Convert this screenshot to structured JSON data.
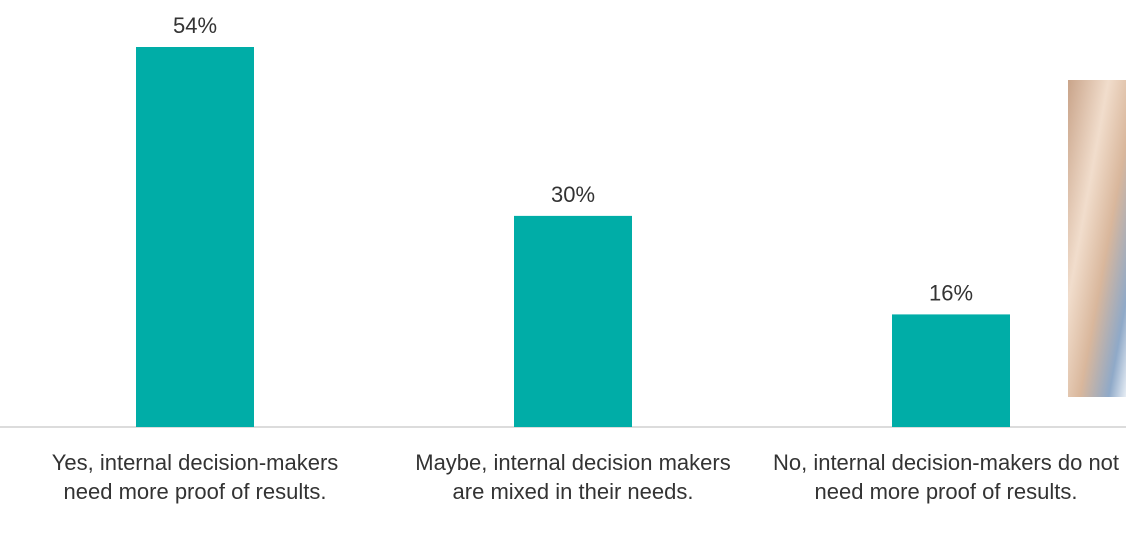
{
  "chart_data": {
    "type": "bar",
    "categories": [
      "Yes, internal decision-makers need more proof of results.",
      "Maybe, internal decision makers are mixed in their needs.",
      "No, internal decision-makers do not need more proof of results."
    ],
    "values": [
      54,
      30,
      16
    ],
    "value_labels": [
      "54%",
      "30%",
      "16%"
    ],
    "color": "#00ada7"
  }
}
